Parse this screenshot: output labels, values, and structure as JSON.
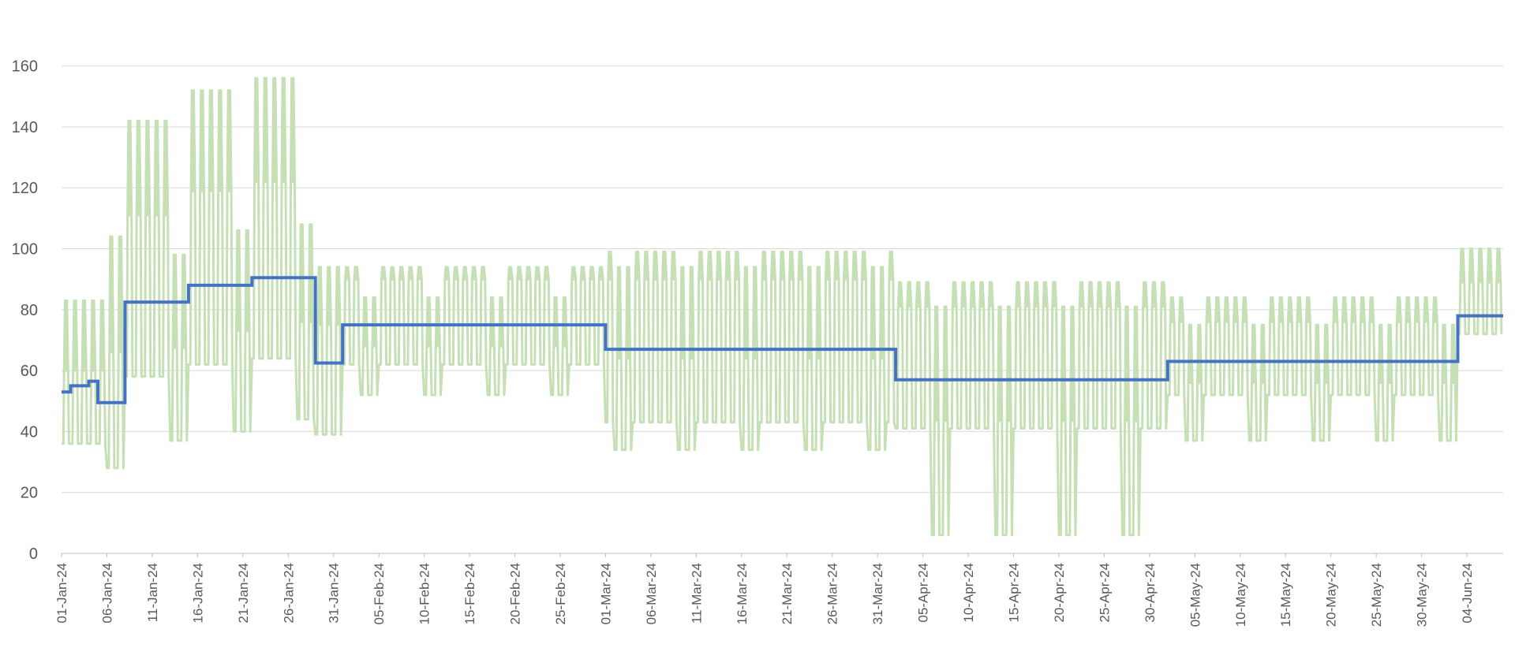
{
  "chart_data": {
    "type": "line",
    "title": "",
    "xlabel": "",
    "ylabel": "",
    "ylim": [
      0,
      170
    ],
    "yticks": [
      0,
      20,
      40,
      60,
      80,
      100,
      120,
      140,
      160
    ],
    "xlim": [
      "2024-01-01",
      "2024-06-08"
    ],
    "grid": true,
    "legend": "none",
    "xtick_labels": [
      "01-Jan-24",
      "06-Jan-24",
      "11-Jan-24",
      "16-Jan-24",
      "21-Jan-24",
      "26-Jan-24",
      "31-Jan-24",
      "05-Feb-24",
      "10-Feb-24",
      "15-Feb-24",
      "20-Feb-24",
      "25-Feb-24",
      "01-Mar-24",
      "06-Mar-24",
      "11-Mar-24",
      "16-Mar-24",
      "21-Mar-24",
      "26-Mar-24",
      "31-Mar-24",
      "05-Apr-24",
      "10-Apr-24",
      "15-Apr-24",
      "20-Apr-24",
      "25-Apr-24",
      "30-Apr-24",
      "05-May-24",
      "10-May-24",
      "15-May-24",
      "20-May-24",
      "25-May-24",
      "30-May-24",
      "04-Jun-24"
    ],
    "colors": {
      "hourly": "#c5e0b4",
      "level": "#4472c4"
    },
    "series": [
      {
        "type": "step",
        "steps": [
          {
            "from": "2024-01-01",
            "value": 53
          },
          {
            "from": "2024-01-02",
            "value": 55
          },
          {
            "from": "2024-01-04",
            "value": 56.5
          },
          {
            "from": "2024-01-04",
            "value": 56.5
          },
          {
            "from": "2024-01-05",
            "value": 49.5
          },
          {
            "from": "2024-01-08",
            "value": 82.5
          },
          {
            "from": "2024-01-15",
            "value": 88
          },
          {
            "from": "2024-01-22",
            "value": 90.5
          },
          {
            "from": "2024-01-29",
            "value": 62.5
          },
          {
            "from": "2024-02-01",
            "value": 75
          },
          {
            "from": "2024-03-01",
            "value": 67
          },
          {
            "from": "2024-04-02",
            "value": 57
          },
          {
            "from": "2024-05-02",
            "value": 63
          },
          {
            "from": "2024-06-03",
            "value": 78
          },
          {
            "from": "2024-06-08",
            "value": 78
          }
        ]
      },
      {
        "type": "oscillating",
        "segments": [
          {
            "from": "2024-01-01",
            "to": "2024-01-08",
            "high": 83,
            "mid": 60,
            "low": 36,
            "weekend_high": 104,
            "weekend_low": 28
          },
          {
            "from": "2024-01-08",
            "to": "2024-01-15",
            "high": 142,
            "mid": 111,
            "low": 58,
            "weekend_high": 98,
            "weekend_low": 37
          },
          {
            "from": "2024-01-15",
            "to": "2024-01-22",
            "high": 152,
            "mid": 119,
            "low": 62,
            "weekend_high": 106,
            "weekend_low": 40
          },
          {
            "from": "2024-01-22",
            "to": "2024-01-29",
            "high": 156,
            "mid": 122,
            "low": 64,
            "weekend_high": 108,
            "weekend_low": 44
          },
          {
            "from": "2024-01-29",
            "to": "2024-02-01",
            "high": 94,
            "mid": 75,
            "low": 39,
            "weekend_high": 94,
            "weekend_low": 39
          },
          {
            "from": "2024-02-01",
            "to": "2024-03-01",
            "high": 94,
            "mid": 90,
            "low": 62,
            "weekend_high": 84,
            "weekend_low": 52
          },
          {
            "from": "2024-03-01",
            "to": "2024-04-02",
            "high": 99,
            "mid": 90,
            "low": 43,
            "weekend_high": 94,
            "weekend_low": 34
          },
          {
            "from": "2024-04-02",
            "to": "2024-05-02",
            "high": 89,
            "mid": 81,
            "low": 41,
            "weekend_high": 81,
            "weekend_low": 6
          },
          {
            "from": "2024-05-02",
            "to": "2024-06-03",
            "high": 84,
            "mid": 76,
            "low": 52,
            "weekend_high": 75,
            "weekend_low": 37
          },
          {
            "from": "2024-06-03",
            "to": "2024-06-08",
            "high": 100,
            "mid": 89,
            "low": 72,
            "weekend_high": 99,
            "weekend_low": 70
          }
        ]
      }
    ]
  }
}
